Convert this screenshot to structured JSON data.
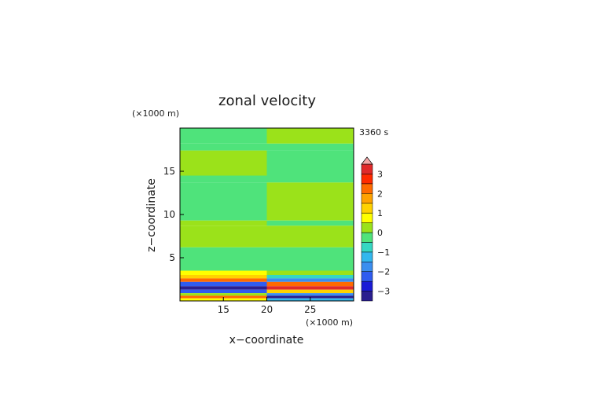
{
  "chart_data": {
    "type": "heatmap",
    "title": "zonal velocity",
    "time_label": "3360 s",
    "xlabel": "x−coordinate",
    "ylabel": "z−coordinate",
    "x_unit": "(×1000 m)",
    "y_unit": "(×1000 m)",
    "xlim": [
      10,
      30
    ],
    "ylim": [
      0,
      20
    ],
    "xticks": [
      {
        "v": 15,
        "label": "15"
      },
      {
        "v": 20,
        "label": "20"
      },
      {
        "v": 25,
        "label": "25"
      }
    ],
    "yticks": [
      {
        "v": 5,
        "label": "5"
      },
      {
        "v": 10,
        "label": "10"
      },
      {
        "v": 15,
        "label": "15"
      }
    ],
    "colorbar": {
      "levels": [
        -3.5,
        -3,
        -2.5,
        -2,
        -1.5,
        -1,
        -0.5,
        0,
        0.5,
        1,
        1.5,
        2,
        2.5,
        3,
        3.5
      ],
      "colors": [
        "#2a1f8f",
        "#1b1bd6",
        "#2f5cf0",
        "#3b8ef0",
        "#32b7ee",
        "#35d7c2",
        "#4fe37b",
        "#9be21a",
        "#ffff00",
        "#ffd200",
        "#ffa200",
        "#ff6a00",
        "#ff2a00",
        "#e02a2a",
        "#f4a6a6"
      ],
      "ticks": [
        {
          "v": -3,
          "label": "−3"
        },
        {
          "v": -2,
          "label": "−2"
        },
        {
          "v": -1,
          "label": "−1"
        },
        {
          "v": 0,
          "label": "0"
        },
        {
          "v": 1,
          "label": "1"
        },
        {
          "v": 2,
          "label": "2"
        },
        {
          "v": 3,
          "label": "3"
        }
      ]
    },
    "bands": [
      {
        "z0": 18.2,
        "z1": 20,
        "left": -0.2,
        "right": 0.1
      },
      {
        "z0": 17.4,
        "z1": 18.2,
        "left": -0.3,
        "right": -0.2
      },
      {
        "z0": 14.5,
        "z1": 17.4,
        "left": 0.3,
        "right": -0.2
      },
      {
        "z0": 13.7,
        "z1": 14.5,
        "left": -0.2,
        "right": -0.2
      },
      {
        "z0": 9.3,
        "z1": 13.7,
        "left": -0.2,
        "right": 0.3
      },
      {
        "z0": 8.7,
        "z1": 9.3,
        "left": 0.2,
        "right": -0.2
      },
      {
        "z0": 6.2,
        "z1": 8.7,
        "left": 0.3,
        "right": 0.3
      },
      {
        "z0": 3.5,
        "z1": 6.2,
        "left": -0.3,
        "right": -0.2
      },
      {
        "z0": 3.0,
        "z1": 3.5,
        "left": 0.6,
        "right": 0.4
      },
      {
        "z0": 2.6,
        "z1": 3.0,
        "left": 1.4,
        "right": -0.6
      },
      {
        "z0": 2.2,
        "z1": 2.6,
        "left": 2.3,
        "right": -1.6
      },
      {
        "z0": 1.7,
        "z1": 2.2,
        "left": -2.2,
        "right": 2.4
      },
      {
        "z0": 1.3,
        "z1": 1.7,
        "left": -3.3,
        "right": 3.3
      },
      {
        "z0": 0.9,
        "z1": 1.3,
        "left": -2.4,
        "right": 1.4
      },
      {
        "z0": 0.6,
        "z1": 0.9,
        "left": 0.3,
        "right": -1.6
      },
      {
        "z0": 0.3,
        "z1": 0.6,
        "left": 2.1,
        "right": -3.2
      },
      {
        "z0": 0.0,
        "z1": 0.3,
        "left": 0.9,
        "right": -1.4
      }
    ],
    "grid": false,
    "legend_position": "right"
  }
}
